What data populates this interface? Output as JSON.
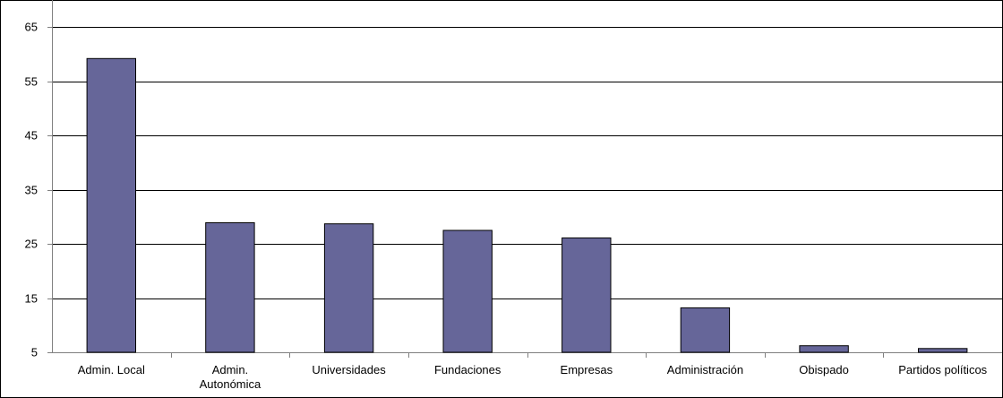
{
  "chart_data": {
    "type": "bar",
    "title": "",
    "xlabel": "",
    "ylabel": "",
    "categories": [
      [
        "Admin. Local"
      ],
      [
        "Admin.",
        "Autonómica"
      ],
      [
        "Universidades"
      ],
      [
        "Fundaciones"
      ],
      [
        "Empresas"
      ],
      [
        "Administración"
      ],
      [
        "Obispado"
      ],
      [
        "Partidos políticos"
      ]
    ],
    "values": [
      59.2,
      28.9,
      28.7,
      27.5,
      26.1,
      13.2,
      6.2,
      5.7
    ],
    "ylim": [
      5,
      70
    ],
    "yticks": [
      5,
      15,
      25,
      35,
      45,
      55,
      65
    ],
    "grid": true,
    "legend": "none",
    "colors": {
      "bar_fill": "#666699",
      "bar_stroke": "#000000",
      "grid": "#000000",
      "axis": "#808080",
      "frame": "#000000"
    }
  }
}
